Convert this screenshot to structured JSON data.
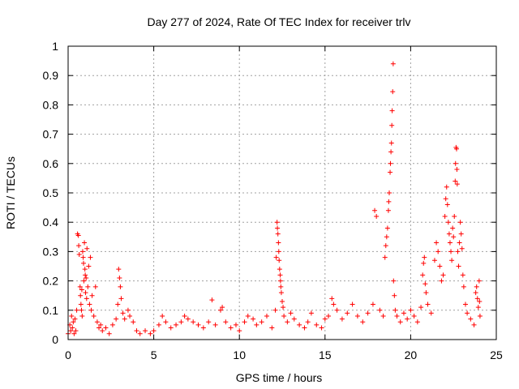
{
  "chart_data": {
    "type": "scatter",
    "title": "Day 277 of 2024, Rate Of TEC Index for receiver trlv",
    "xlabel": "GPS time / hours",
    "ylabel": "ROTI / TECUs",
    "xlim": [
      0,
      25
    ],
    "ylim": [
      0,
      1
    ],
    "x_ticks": [
      0,
      5,
      10,
      15,
      20,
      25
    ],
    "x_tick_labels": [
      "0",
      "5",
      "10",
      "15",
      "20",
      "25"
    ],
    "y_ticks": [
      0,
      0.1,
      0.2,
      0.3,
      0.4,
      0.5,
      0.6,
      0.7,
      0.8,
      0.9,
      1
    ],
    "y_tick_labels": [
      "0",
      "0.1",
      "0.2",
      "0.3",
      "0.4",
      "0.5",
      "0.6",
      "0.7",
      "0.8",
      "0.9",
      "1"
    ],
    "grid": true,
    "marker": "+",
    "color": "#ff0000",
    "series": [
      {
        "name": "ROTI",
        "points": [
          [
            0.0,
            0.02
          ],
          [
            0.1,
            0.05
          ],
          [
            0.15,
            0.03
          ],
          [
            0.2,
            0.08
          ],
          [
            0.25,
            0.04
          ],
          [
            0.3,
            0.06
          ],
          [
            0.35,
            0.02
          ],
          [
            0.4,
            0.07
          ],
          [
            0.45,
            0.03
          ],
          [
            0.5,
            0.1
          ],
          [
            0.55,
            0.36
          ],
          [
            0.6,
            0.355
          ],
          [
            0.62,
            0.32
          ],
          [
            0.65,
            0.29
          ],
          [
            0.7,
            0.18
          ],
          [
            0.72,
            0.15
          ],
          [
            0.75,
            0.12
          ],
          [
            0.78,
            0.1
          ],
          [
            0.8,
            0.17
          ],
          [
            0.82,
            0.08
          ],
          [
            0.85,
            0.3
          ],
          [
            0.88,
            0.28
          ],
          [
            0.9,
            0.26
          ],
          [
            0.92,
            0.2
          ],
          [
            0.95,
            0.33
          ],
          [
            0.98,
            0.24
          ],
          [
            1.0,
            0.22
          ],
          [
            1.02,
            0.16
          ],
          [
            1.05,
            0.21
          ],
          [
            1.08,
            0.14
          ],
          [
            1.1,
            0.31
          ],
          [
            1.15,
            0.18
          ],
          [
            1.2,
            0.25
          ],
          [
            1.25,
            0.12
          ],
          [
            1.3,
            0.28
          ],
          [
            1.35,
            0.1
          ],
          [
            1.4,
            0.15
          ],
          [
            1.5,
            0.08
          ],
          [
            1.6,
            0.18
          ],
          [
            1.7,
            0.06
          ],
          [
            1.8,
            0.04
          ],
          [
            1.9,
            0.05
          ],
          [
            2.0,
            0.03
          ],
          [
            2.2,
            0.04
          ],
          [
            2.4,
            0.02
          ],
          [
            2.6,
            0.05
          ],
          [
            2.8,
            0.07
          ],
          [
            2.9,
            0.12
          ],
          [
            2.95,
            0.24
          ],
          [
            3.0,
            0.21
          ],
          [
            3.05,
            0.18
          ],
          [
            3.1,
            0.14
          ],
          [
            3.2,
            0.09
          ],
          [
            3.3,
            0.07
          ],
          [
            3.5,
            0.1
          ],
          [
            3.6,
            0.08
          ],
          [
            3.8,
            0.06
          ],
          [
            4.0,
            0.03
          ],
          [
            4.2,
            0.02
          ],
          [
            4.5,
            0.03
          ],
          [
            4.8,
            0.02
          ],
          [
            5.0,
            0.03
          ],
          [
            5.3,
            0.05
          ],
          [
            5.5,
            0.08
          ],
          [
            5.7,
            0.06
          ],
          [
            6.0,
            0.04
          ],
          [
            6.3,
            0.05
          ],
          [
            6.6,
            0.06
          ],
          [
            6.8,
            0.08
          ],
          [
            7.0,
            0.07
          ],
          [
            7.3,
            0.06
          ],
          [
            7.6,
            0.05
          ],
          [
            7.9,
            0.04
          ],
          [
            8.2,
            0.06
          ],
          [
            8.4,
            0.135
          ],
          [
            8.6,
            0.05
          ],
          [
            8.9,
            0.1
          ],
          [
            9.0,
            0.11
          ],
          [
            9.2,
            0.06
          ],
          [
            9.5,
            0.04
          ],
          [
            9.8,
            0.05
          ],
          [
            10.0,
            0.03
          ],
          [
            10.3,
            0.06
          ],
          [
            10.5,
            0.08
          ],
          [
            10.8,
            0.07
          ],
          [
            11.0,
            0.05
          ],
          [
            11.3,
            0.06
          ],
          [
            11.6,
            0.08
          ],
          [
            11.9,
            0.04
          ],
          [
            12.1,
            0.1
          ],
          [
            12.15,
            0.28
          ],
          [
            12.2,
            0.4
          ],
          [
            12.22,
            0.38
          ],
          [
            12.25,
            0.36
          ],
          [
            12.28,
            0.33
          ],
          [
            12.3,
            0.3
          ],
          [
            12.32,
            0.27
          ],
          [
            12.35,
            0.24
          ],
          [
            12.38,
            0.22
          ],
          [
            12.4,
            0.2
          ],
          [
            12.42,
            0.18
          ],
          [
            12.45,
            0.16
          ],
          [
            12.5,
            0.13
          ],
          [
            12.55,
            0.11
          ],
          [
            12.6,
            0.08
          ],
          [
            12.8,
            0.06
          ],
          [
            13.0,
            0.09
          ],
          [
            13.2,
            0.07
          ],
          [
            13.5,
            0.05
          ],
          [
            13.8,
            0.04
          ],
          [
            14.0,
            0.06
          ],
          [
            14.2,
            0.09
          ],
          [
            14.5,
            0.05
          ],
          [
            14.8,
            0.04
          ],
          [
            15.0,
            0.07
          ],
          [
            15.2,
            0.08
          ],
          [
            15.4,
            0.14
          ],
          [
            15.5,
            0.12
          ],
          [
            15.7,
            0.1
          ],
          [
            16.0,
            0.07
          ],
          [
            16.3,
            0.09
          ],
          [
            16.6,
            0.12
          ],
          [
            16.9,
            0.08
          ],
          [
            17.2,
            0.06
          ],
          [
            17.5,
            0.09
          ],
          [
            17.8,
            0.12
          ],
          [
            17.9,
            0.44
          ],
          [
            18.0,
            0.42
          ],
          [
            18.2,
            0.1
          ],
          [
            18.4,
            0.08
          ],
          [
            18.5,
            0.28
          ],
          [
            18.55,
            0.32
          ],
          [
            18.6,
            0.35
          ],
          [
            18.65,
            0.38
          ],
          [
            18.7,
            0.44
          ],
          [
            18.72,
            0.47
          ],
          [
            18.75,
            0.5
          ],
          [
            18.8,
            0.57
          ],
          [
            18.82,
            0.6
          ],
          [
            18.85,
            0.64
          ],
          [
            18.88,
            0.67
          ],
          [
            18.9,
            0.73
          ],
          [
            18.92,
            0.78
          ],
          [
            18.95,
            0.845
          ],
          [
            18.98,
            0.94
          ],
          [
            19.0,
            0.2
          ],
          [
            19.05,
            0.15
          ],
          [
            19.1,
            0.1
          ],
          [
            19.2,
            0.08
          ],
          [
            19.4,
            0.06
          ],
          [
            19.6,
            0.09
          ],
          [
            19.8,
            0.07
          ],
          [
            20.0,
            0.1
          ],
          [
            20.2,
            0.08
          ],
          [
            20.4,
            0.06
          ],
          [
            20.6,
            0.11
          ],
          [
            20.7,
            0.22
          ],
          [
            20.75,
            0.26
          ],
          [
            20.8,
            0.28
          ],
          [
            20.85,
            0.19
          ],
          [
            20.9,
            0.16
          ],
          [
            21.0,
            0.12
          ],
          [
            21.2,
            0.09
          ],
          [
            21.4,
            0.27
          ],
          [
            21.5,
            0.33
          ],
          [
            21.6,
            0.3
          ],
          [
            21.7,
            0.25
          ],
          [
            21.8,
            0.2
          ],
          [
            21.9,
            0.22
          ],
          [
            22.0,
            0.42
          ],
          [
            22.05,
            0.48
          ],
          [
            22.1,
            0.52
          ],
          [
            22.15,
            0.46
          ],
          [
            22.2,
            0.4
          ],
          [
            22.25,
            0.36
          ],
          [
            22.3,
            0.33
          ],
          [
            22.35,
            0.3
          ],
          [
            22.4,
            0.27
          ],
          [
            22.45,
            0.38
          ],
          [
            22.5,
            0.35
          ],
          [
            22.55,
            0.42
          ],
          [
            22.6,
            0.54
          ],
          [
            22.62,
            0.6
          ],
          [
            22.65,
            0.655
          ],
          [
            22.68,
            0.65
          ],
          [
            22.7,
            0.58
          ],
          [
            22.72,
            0.53
          ],
          [
            22.75,
            0.3
          ],
          [
            22.8,
            0.25
          ],
          [
            22.85,
            0.33
          ],
          [
            22.9,
            0.4
          ],
          [
            22.95,
            0.36
          ],
          [
            23.0,
            0.31
          ],
          [
            23.05,
            0.22
          ],
          [
            23.1,
            0.18
          ],
          [
            23.2,
            0.12
          ],
          [
            23.3,
            0.09
          ],
          [
            23.5,
            0.07
          ],
          [
            23.7,
            0.05
          ],
          [
            23.8,
            0.16
          ],
          [
            23.85,
            0.18
          ],
          [
            23.9,
            0.14
          ],
          [
            23.95,
            0.11
          ],
          [
            24.0,
            0.2
          ],
          [
            24.02,
            0.13
          ],
          [
            24.05,
            0.08
          ]
        ]
      }
    ]
  }
}
